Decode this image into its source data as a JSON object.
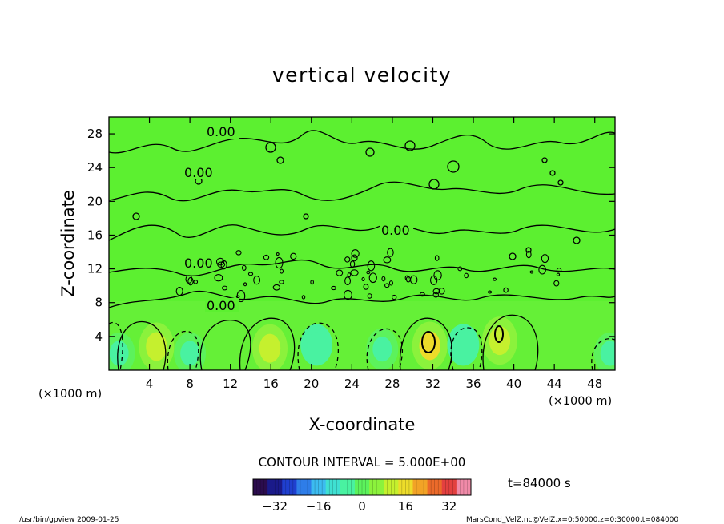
{
  "chart_data": {
    "type": "heatmap",
    "title": "vertical velocity",
    "xlabel": "X-coordinate",
    "ylabel": "Z-coordinate",
    "x_unit": "(×1000 m)",
    "y_unit": "(×1000 m)",
    "xlim": [
      0,
      50
    ],
    "ylim": [
      0,
      30
    ],
    "x_ticks": [
      "4",
      "8",
      "12",
      "16",
      "20",
      "24",
      "28",
      "32",
      "36",
      "40",
      "44",
      "48"
    ],
    "y_ticks": [
      "4",
      "8",
      "12",
      "16",
      "20",
      "24",
      "28"
    ],
    "contour_interval_text": "CONTOUR INTERVAL = 5.000E+00",
    "time_text": "t=84000 s",
    "contour_labels": [
      "0.00",
      "0.00",
      "0.00",
      "0.00",
      "0.00"
    ],
    "colorbar": {
      "range": [
        -40,
        40
      ],
      "tick_labels": [
        "−32",
        "−16",
        "0",
        "16",
        "32"
      ],
      "colors": [
        "#2b0c4d",
        "#1a1a8a",
        "#1f3fcf",
        "#2e7de8",
        "#3cbcf0",
        "#3fe0d2",
        "#49f2a1",
        "#5cf25c",
        "#8bf23c",
        "#c5f02e",
        "#eddc2a",
        "#f2a326",
        "#ec6a2a",
        "#e3403f",
        "#f08aa8"
      ]
    },
    "features": [
      {
        "type": "updraft",
        "x": 4.7,
        "z": 2.8,
        "peak": 8
      },
      {
        "type": "updraft",
        "x": 15.9,
        "z": 2.6,
        "peak": 10
      },
      {
        "type": "updraft",
        "x": 31.7,
        "z": 2.9,
        "peak": 14
      },
      {
        "type": "updraft",
        "x": 38.6,
        "z": 3.5,
        "peak": 12
      },
      {
        "type": "downdraft",
        "x": 1.0,
        "z": 2.0,
        "peak": -4
      },
      {
        "type": "downdraft",
        "x": 8.0,
        "z": 2.0,
        "peak": -3
      },
      {
        "type": "downdraft",
        "x": 20.5,
        "z": 3.0,
        "peak": -5
      },
      {
        "type": "downdraft",
        "x": 27.0,
        "z": 2.5,
        "peak": -4
      },
      {
        "type": "downdraft",
        "x": 35.0,
        "z": 3.0,
        "peak": -5
      },
      {
        "type": "downdraft",
        "x": 49.5,
        "z": 2.0,
        "peak": -3
      }
    ]
  },
  "footer": {
    "left": "/usr/bin/gpview  2009-01-25",
    "right": "MarsCond_VelZ.nc@VelZ,x=0:50000,z=0:30000,t=084000"
  }
}
